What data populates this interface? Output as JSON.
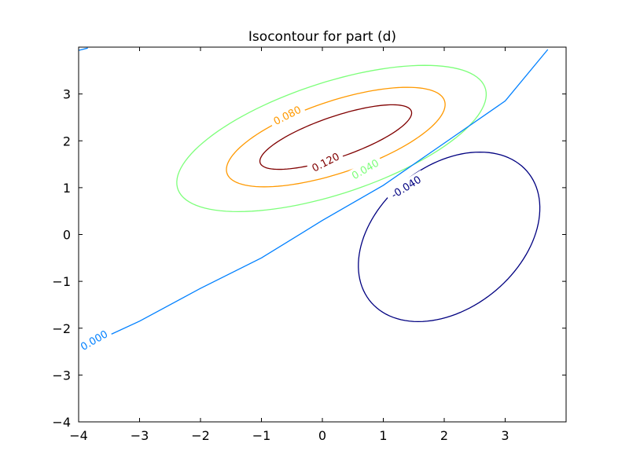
{
  "chart_data": {
    "type": "contour",
    "title": "Isocontour for part (d)",
    "xlabel": "",
    "ylabel": "",
    "xlim": [
      -4,
      4
    ],
    "ylim": [
      -4,
      4
    ],
    "xticks": [
      -4,
      -3,
      -2,
      -1,
      0,
      1,
      2,
      3
    ],
    "xtick_labels": [
      "−4",
      "−3",
      "−2",
      "−1",
      "0",
      "1",
      "2",
      "3"
    ],
    "yticks": [
      -4,
      -3,
      -2,
      -1,
      0,
      1,
      2,
      3
    ],
    "ytick_labels": [
      "−4",
      "−3",
      "−2",
      "−1",
      "0",
      "1",
      "2",
      "3"
    ],
    "grid": false,
    "levels": [
      {
        "label": "0.120",
        "value": 0.12,
        "color": "#800000",
        "shape": "ellipse",
        "center": [
          0.22,
          2.08
        ],
        "semi_axes": [
          1.36,
          0.42
        ],
        "angle_deg": 25,
        "label_at": [
          0.05,
          1.55
        ],
        "label_angle_deg": 27
      },
      {
        "label": "0.080",
        "value": 0.08,
        "color": "#ff9900",
        "shape": "ellipse",
        "center": [
          0.22,
          2.08
        ],
        "semi_axes": [
          1.95,
          0.74
        ],
        "angle_deg": 25,
        "label_at": [
          -0.58,
          2.55
        ],
        "label_angle_deg": 27
      },
      {
        "label": "0.040",
        "value": 0.04,
        "color": "#7dff7a",
        "shape": "ellipse",
        "center": [
          0.15,
          2.05
        ],
        "semi_axes": [
          2.75,
          1.15
        ],
        "angle_deg": 25,
        "label_at": [
          0.7,
          1.4
        ],
        "label_angle_deg": 30
      },
      {
        "label": "-0.040",
        "value": -0.04,
        "color": "#000080",
        "shape": "ellipse",
        "center": [
          2.08,
          -0.05
        ],
        "semi_axes": [
          1.95,
          1.3
        ],
        "angle_deg": 60,
        "label_at": [
          1.37,
          1.02
        ],
        "label_angle_deg": 32
      },
      {
        "label": "0.000",
        "value": 0.0,
        "color": "#0080ff",
        "shape": "polyline",
        "points": [
          [
            -4.0,
            -2.45
          ],
          [
            -3.0,
            -1.85
          ],
          [
            -2.0,
            -1.15
          ],
          [
            -1.0,
            -0.5
          ],
          [
            0.0,
            0.3
          ],
          [
            1.0,
            1.05
          ],
          [
            2.0,
            1.95
          ],
          [
            3.0,
            2.85
          ],
          [
            3.7,
            3.95
          ]
        ],
        "top_left_fragment": [
          [
            -4.0,
            3.93
          ],
          [
            -3.85,
            3.98
          ]
        ],
        "label_at": [
          -3.75,
          -2.25
        ],
        "label_angle_deg": 30
      }
    ]
  }
}
